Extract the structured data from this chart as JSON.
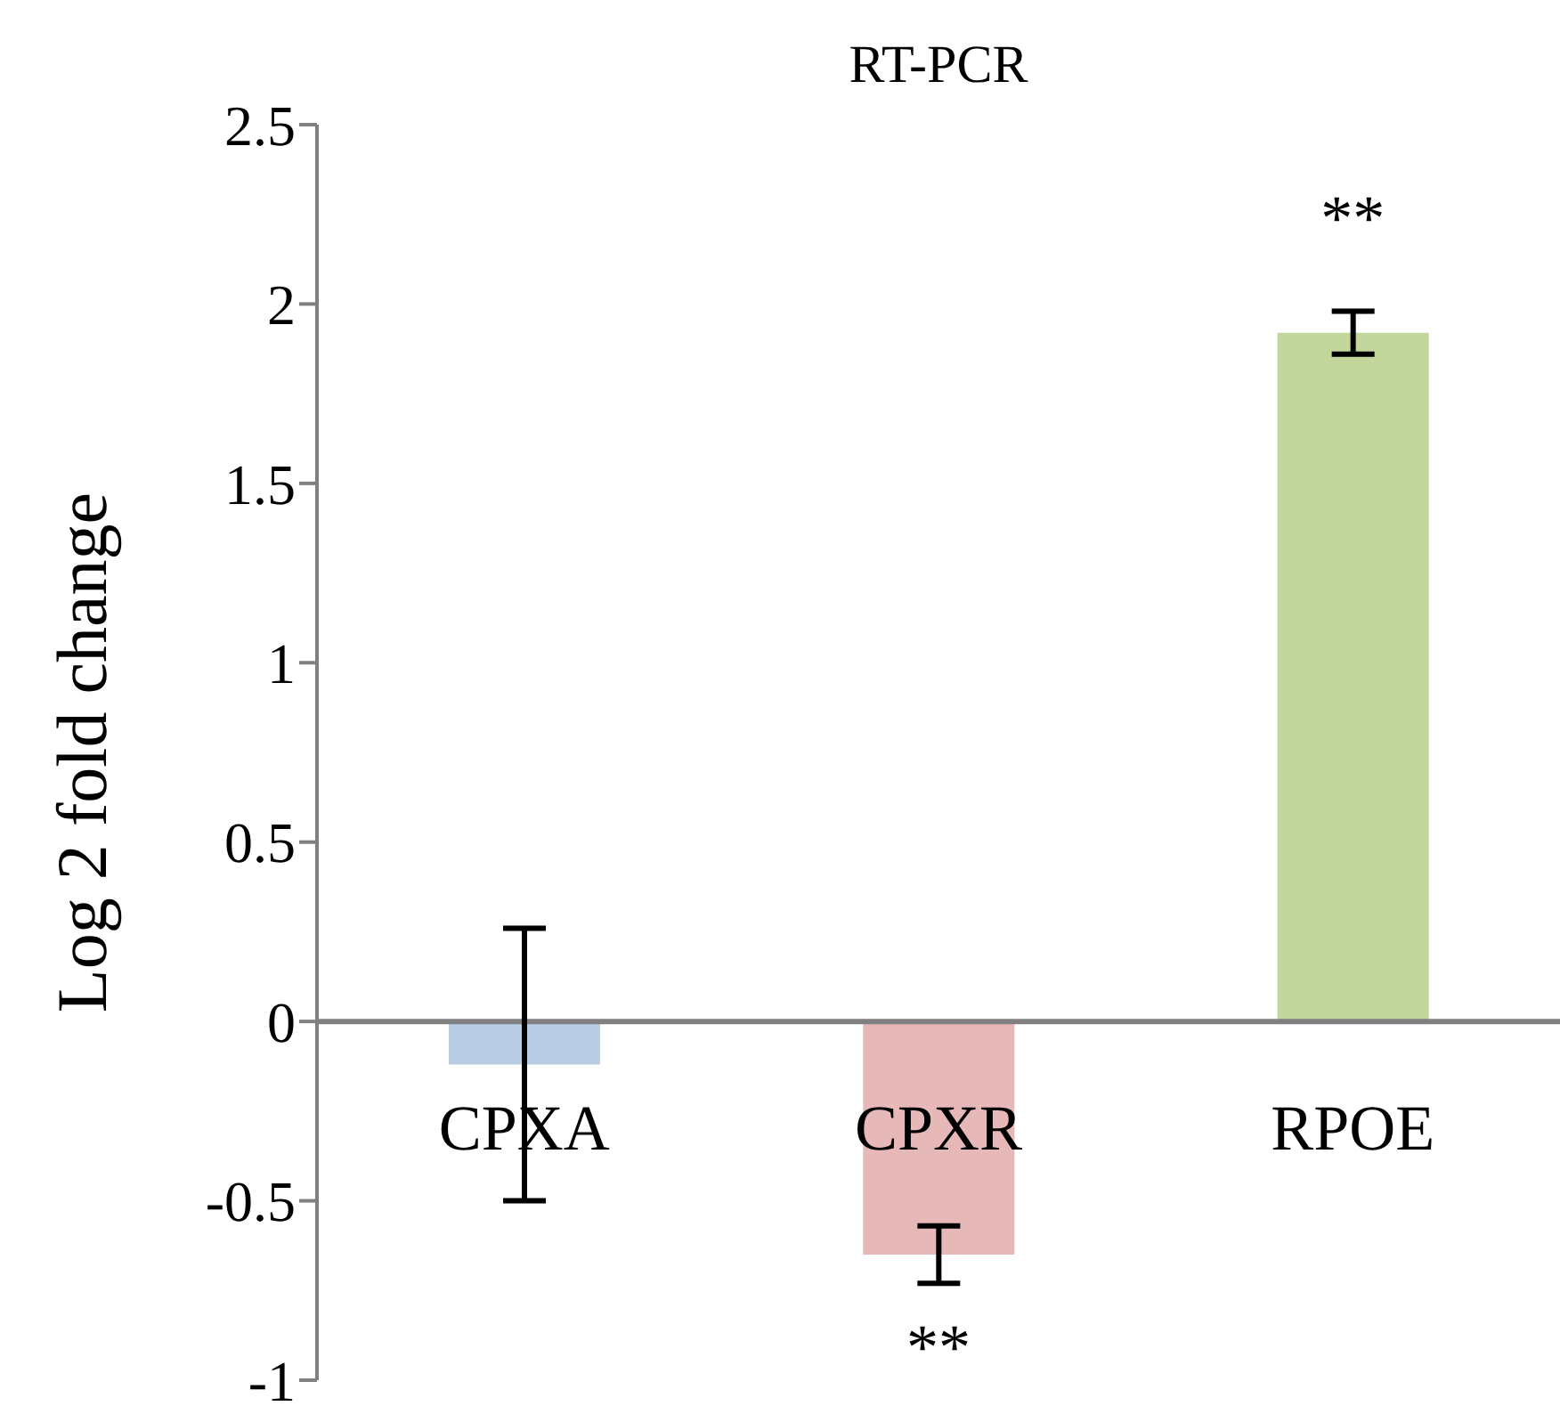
{
  "chart_data": {
    "type": "bar",
    "title": "RT-PCR",
    "ylabel": "Log 2 fold change",
    "categories": [
      "CPXA",
      "CPXR",
      "RPOE"
    ],
    "values": [
      -0.12,
      -0.65,
      1.92
    ],
    "colors": [
      "#b9cde5",
      "#e6b9b8",
      "#c3d69b"
    ],
    "errors": [
      0.38,
      0.08,
      0.06
    ],
    "value_labels": [
      null,
      "**",
      "**"
    ],
    "ylim": [
      -1,
      2.5
    ],
    "yticks": [
      -1,
      -0.5,
      0,
      0.5,
      1,
      1.5,
      2,
      2.5
    ],
    "grid": false,
    "legend": false
  }
}
